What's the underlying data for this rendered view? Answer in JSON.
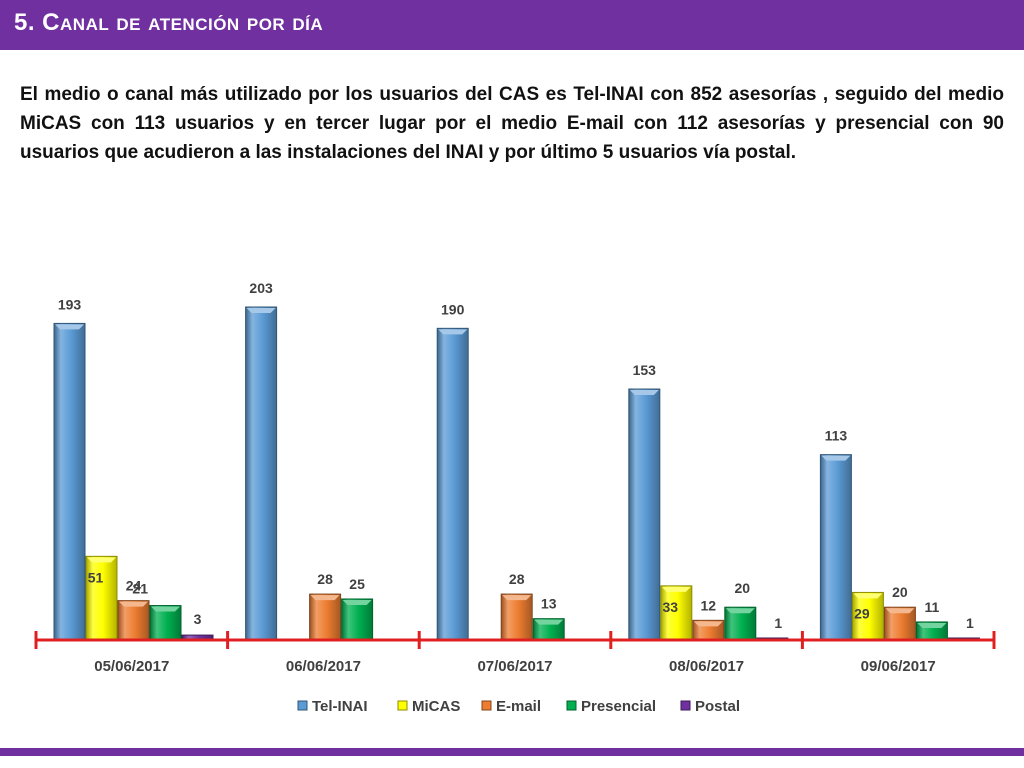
{
  "slide": {
    "title": "5. Canal de atención por día",
    "intro": "El medio o canal más utilizado por los usuarios del CAS es Tel-INAI con 852 asesorías , seguido del medio MiCAS con 113 usuarios y en tercer lugar por el medio E-mail con 112 asesorías y presencial con 90 usuarios que acudieron a las instalaciones del INAI y por último 5 usuarios vía postal."
  },
  "colors": {
    "accent": "#7030a0",
    "axis": "#e02020",
    "Tel-INAI": "#5b9bd5",
    "MiCAS": "#ffff00",
    "E-mail": "#ed7d31",
    "Presencial": "#00b050",
    "Postal": "#7030a0"
  },
  "chart_data": {
    "type": "bar",
    "title": "",
    "xlabel": "",
    "ylabel": "",
    "ylim": [
      0,
      210
    ],
    "grid": false,
    "legend_position": "bottom",
    "categories": [
      "05/06/2017",
      "06/06/2017",
      "07/06/2017",
      "08/06/2017",
      "09/06/2017"
    ],
    "series": [
      {
        "name": "Tel-INAI",
        "values": [
          193,
          203,
          190,
          153,
          113
        ]
      },
      {
        "name": "MiCAS",
        "values": [
          51,
          null,
          null,
          33,
          29
        ]
      },
      {
        "name": "E-mail",
        "values": [
          24,
          28,
          28,
          12,
          20
        ]
      },
      {
        "name": "Presencial",
        "values": [
          21,
          25,
          13,
          20,
          11
        ]
      },
      {
        "name": "Postal",
        "values": [
          3,
          null,
          null,
          1,
          1
        ]
      }
    ]
  }
}
